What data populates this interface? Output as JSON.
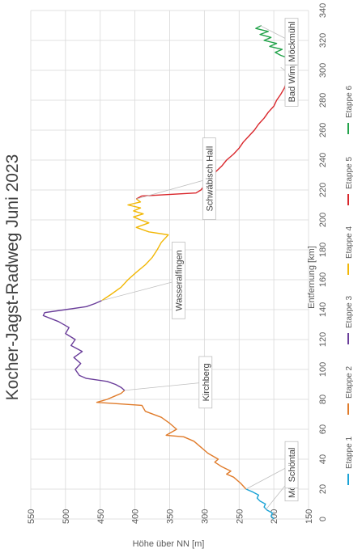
{
  "chart_data": {
    "type": "line",
    "title": "Kocher-Jagst-Radweg Juni 2023",
    "xlabel": "Entfernung [km]",
    "ylabel": "Höhe über NN [m]",
    "xlim": [
      0,
      340
    ],
    "ylim": [
      150,
      550
    ],
    "xticks": [
      0,
      20,
      40,
      60,
      80,
      100,
      120,
      140,
      160,
      180,
      200,
      220,
      240,
      260,
      280,
      300,
      320,
      340
    ],
    "yticks": [
      150,
      200,
      250,
      300,
      350,
      400,
      450,
      500,
      550
    ],
    "grid": true,
    "legend_position": "bottom",
    "series": [
      {
        "name": "Etappe 1",
        "color": "#1aa3d6",
        "x": [
          0,
          2,
          4,
          6,
          8,
          10,
          12,
          14,
          16,
          18,
          20
        ],
        "y": [
          200,
          204,
          202,
          210,
          214,
          212,
          220,
          224,
          222,
          230,
          240
        ]
      },
      {
        "name": "Etappe 2",
        "color": "#e07b2a",
        "x": [
          20,
          24,
          28,
          30,
          32,
          35,
          38,
          40,
          44,
          48,
          52,
          55,
          56,
          60,
          64,
          68,
          72,
          76,
          78,
          80,
          82,
          84,
          86
        ],
        "y": [
          240,
          248,
          258,
          268,
          262,
          275,
          285,
          280,
          295,
          305,
          315,
          330,
          355,
          340,
          350,
          362,
          385,
          390,
          455,
          440,
          430,
          420,
          415
        ]
      },
      {
        "name": "Etappe 3",
        "color": "#6a3d9a",
        "x": [
          86,
          88,
          90,
          92,
          94,
          96,
          100,
          104,
          108,
          112,
          116,
          120,
          124,
          128,
          132,
          136,
          138,
          140,
          142,
          144,
          146
        ],
        "y": [
          415,
          420,
          428,
          440,
          470,
          480,
          486,
          478,
          488,
          476,
          492,
          486,
          500,
          495,
          510,
          532,
          530,
          500,
          470,
          458,
          448
        ]
      },
      {
        "name": "Etappe 4",
        "color": "#f2b705",
        "x": [
          146,
          150,
          155,
          160,
          165,
          170,
          175,
          180,
          185,
          190,
          192,
          195,
          198,
          200,
          202,
          204,
          206,
          208,
          210,
          212,
          214
        ],
        "y": [
          448,
          435,
          420,
          410,
          398,
          385,
          375,
          368,
          362,
          352,
          380,
          398,
          380,
          392,
          402,
          388,
          402,
          392,
          410,
          392,
          398
        ]
      },
      {
        "name": "Etappe 5",
        "color": "#d9262b",
        "x": [
          214,
          216,
          218,
          220,
          224,
          228,
          232,
          236,
          240,
          244,
          248,
          252,
          256,
          260,
          264,
          268,
          272,
          276,
          280,
          284,
          288,
          292,
          296,
          300,
          302
        ],
        "y": [
          398,
          390,
          312,
          305,
          298,
          290,
          284,
          275,
          268,
          258,
          250,
          244,
          236,
          228,
          222,
          214,
          208,
          200,
          196,
          190,
          185,
          182,
          178,
          174,
          172
        ]
      },
      {
        "name": "Etappe 6",
        "color": "#22a34a",
        "x": [
          302,
          304,
          306,
          308,
          310,
          312,
          314,
          316,
          318,
          320,
          322,
          324,
          326,
          328,
          330
        ],
        "y": [
          172,
          175,
          182,
          178,
          190,
          198,
          188,
          206,
          196,
          214,
          204,
          220,
          208,
          226,
          218
        ]
      }
    ],
    "annotations": [
      {
        "text": "Möckmühl",
        "x": 6,
        "y": 212
      },
      {
        "text": "Schöntal",
        "x": 20,
        "y": 240
      },
      {
        "text": "Kirchberg",
        "x": 86,
        "y": 415
      },
      {
        "text": "Wasseralfingen",
        "x": 146,
        "y": 448
      },
      {
        "text": "Schwäbisch Hall",
        "x": 214,
        "y": 398
      },
      {
        "text": "Bad Wimpfen",
        "x": 302,
        "y": 190
      },
      {
        "text": "Möckmühl",
        "x": 330,
        "y": 220
      }
    ]
  }
}
